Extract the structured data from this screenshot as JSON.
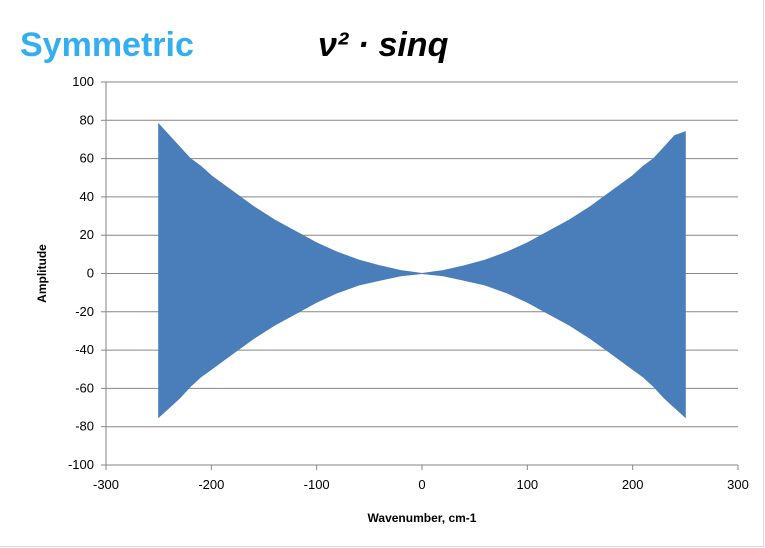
{
  "header": {
    "label": "Symmetric",
    "formula": "ν² · sinq"
  },
  "colors": {
    "title_accent": "#33aef0",
    "series": "#4a7ebb"
  },
  "chart_data": {
    "type": "line",
    "title": "",
    "xlabel": "Wavenumber, cm-1",
    "ylabel": "Amplitude",
    "xlim": [
      -300,
      300
    ],
    "ylim": [
      -100,
      100
    ],
    "x_ticks": [
      "-300",
      "-200",
      "-100",
      "0",
      "100",
      "200",
      "300"
    ],
    "y_ticks": [
      "100",
      "80",
      "60",
      "40",
      "20",
      "0",
      "-20",
      "-40",
      "-60",
      "-80",
      "-100"
    ],
    "grid": "horizontal",
    "legend": "none",
    "series": [
      {
        "x": [
          -250,
          -240,
          -230,
          -220,
          -210,
          -200,
          -180,
          -160,
          -140,
          -120,
          -100,
          -80,
          -60,
          -40,
          -20,
          0,
          20,
          40,
          60,
          80,
          100,
          120,
          140,
          160,
          180,
          200,
          210,
          220,
          230,
          240,
          250
        ],
        "upper": [
          78,
          72,
          66,
          60,
          56,
          51,
          43,
          35,
          28,
          22,
          16,
          11,
          7,
          4,
          1.5,
          0,
          1.5,
          4,
          7,
          11,
          16,
          22,
          28,
          35,
          43,
          51,
          56,
          60,
          66,
          72,
          74
        ],
        "lower": [
          -75,
          -70,
          -65,
          -59,
          -54,
          -50,
          -42,
          -34,
          -27,
          -21,
          -15,
          -10,
          -6,
          -3.5,
          -1.2,
          0,
          -1.2,
          -3.5,
          -6,
          -10,
          -15,
          -21,
          -27,
          -34,
          -42,
          -50,
          -54,
          -59,
          -65,
          -70,
          -75
        ]
      }
    ]
  }
}
